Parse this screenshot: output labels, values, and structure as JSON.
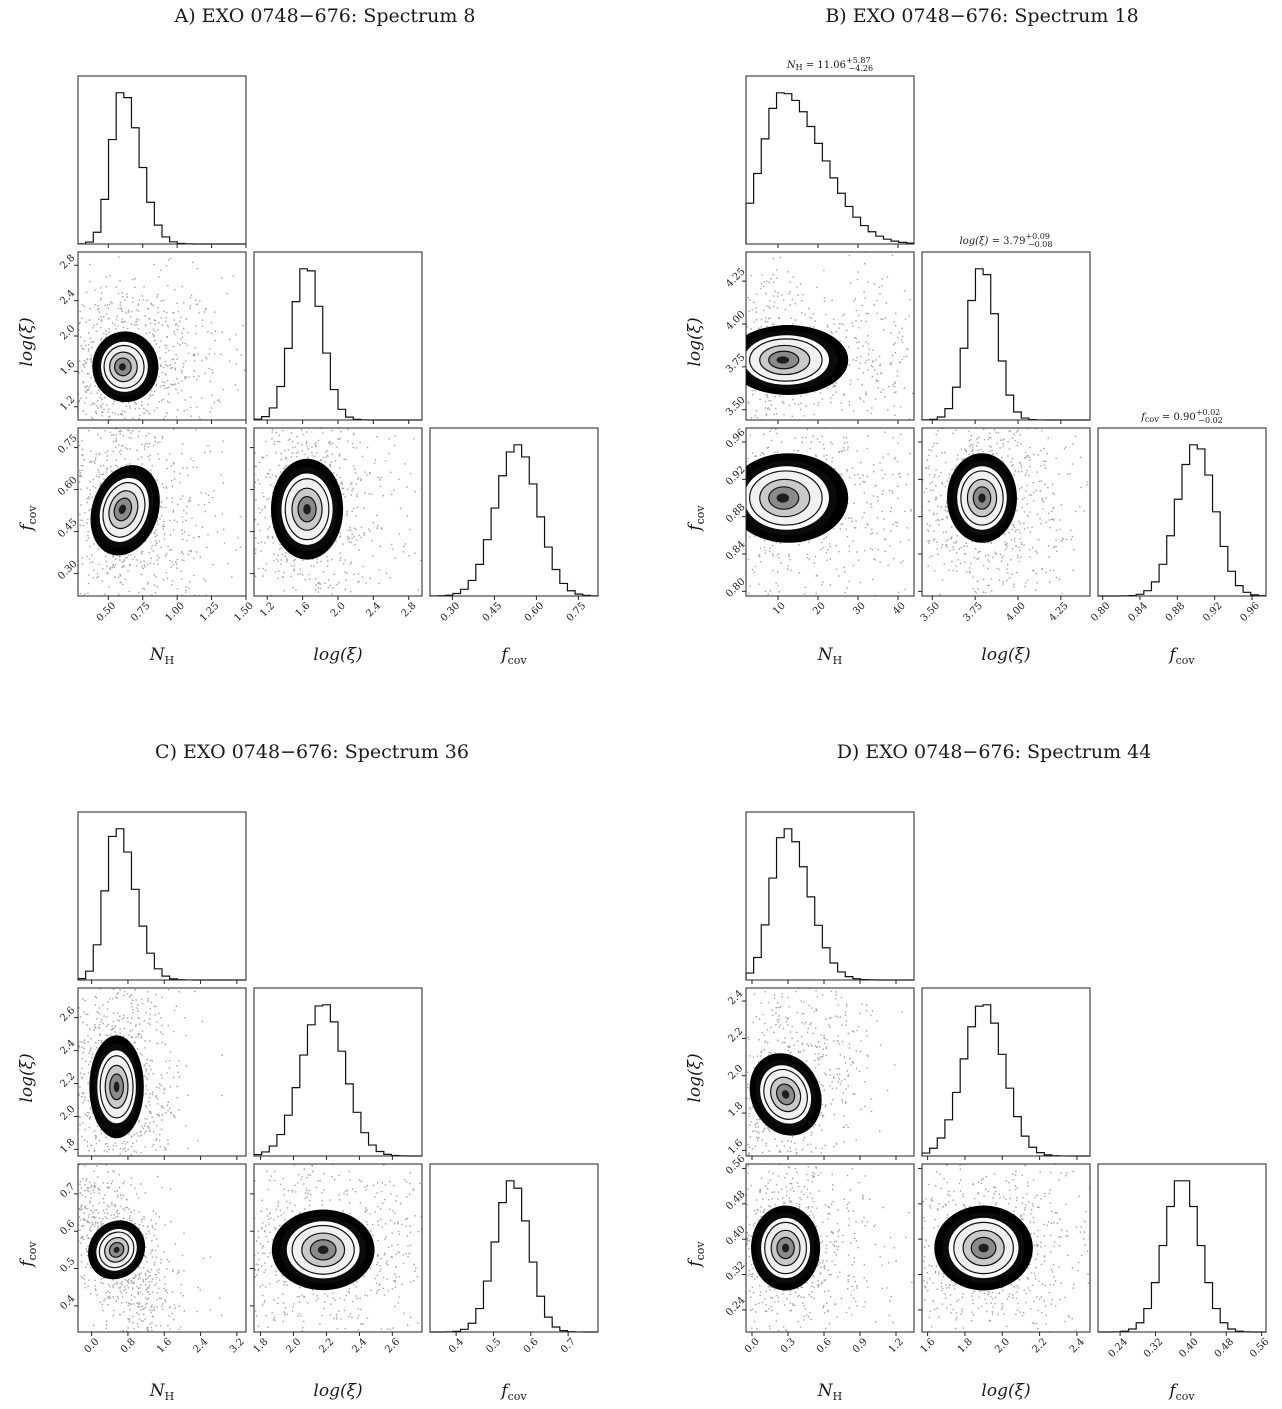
{
  "figure": {
    "panels": [
      {
        "id": "A",
        "title": "A) EXO 0748−676: Spectrum 8"
      },
      {
        "id": "B",
        "title": "B) EXO 0748−676: Spectrum 18"
      },
      {
        "id": "C",
        "title": "C) EXO 0748−676: Spectrum 36"
      },
      {
        "id": "D",
        "title": "D) EXO 0748−676: Spectrum 44"
      }
    ]
  },
  "chart_data": [
    {
      "type": "corner",
      "panel": "A",
      "title": "A) EXO 0748−676: Spectrum 8",
      "parameters": [
        "N_H",
        "log(ξ)",
        "f_cov"
      ],
      "axis_labels": [
        "N",
        "log(ξ)",
        "f"
      ],
      "axis_label_subs": [
        "H",
        "",
        "cov"
      ],
      "ranges": [
        [
          0.28,
          1.5
        ],
        [
          1.05,
          2.95
        ],
        [
          0.22,
          0.82
        ]
      ],
      "ticks": [
        [
          "0.50",
          "0.75",
          "1.00",
          "1.25",
          "1.50"
        ],
        [
          "1.2",
          "1.6",
          "2.0",
          "2.4",
          "2.8"
        ],
        [
          "0.30",
          "0.45",
          "0.60",
          "0.75"
        ]
      ],
      "stats": [
        "",
        "",
        ""
      ],
      "posterior": {
        "means": [
          0.6,
          1.65,
          0.53
        ],
        "sigmas": [
          0.08,
          0.17,
          0.075
        ],
        "correlations": {
          "0-1": 0.05,
          "0-2": -0.2,
          "1-2": 0.0
        }
      }
    },
    {
      "type": "corner",
      "panel": "B",
      "title": "B) EXO 0748−676: Spectrum 18",
      "parameters": [
        "N_H",
        "log(ξ)",
        "f_cov"
      ],
      "axis_labels": [
        "N",
        "log(ξ)",
        "f"
      ],
      "axis_label_subs": [
        "H",
        "",
        "cov"
      ],
      "ranges": [
        [
          2.0,
          44.0
        ],
        [
          3.44,
          4.42
        ],
        [
          0.795,
          0.975
        ]
      ],
      "ticks": [
        [
          "10",
          "20",
          "30",
          "40"
        ],
        [
          "3.50",
          "3.75",
          "4.00",
          "4.25"
        ],
        [
          "0.80",
          "0.84",
          "0.88",
          "0.92",
          "0.96"
        ]
      ],
      "stats": [
        "N_H = 11.06 +5.87 −4.26",
        "log(ξ) = 3.79 +0.09 −0.08",
        "f_cov = 0.90 +0.02 −0.02"
      ],
      "stat_parts": [
        {
          "lhs": "N",
          "sub": "H",
          "eq": " = 11.06",
          "sup": "+5.87",
          "low": "−4.26"
        },
        {
          "lhs": "log(ξ)",
          "sub": "",
          "eq": " = 3.79",
          "sup": "+0.09",
          "low": "−0.08"
        },
        {
          "lhs": "f",
          "sub": "cov",
          "eq": " = 0.90",
          "sup": "+0.02",
          "low": "−0.02"
        }
      ],
      "posterior": {
        "means": [
          11.06,
          3.79,
          0.9
        ],
        "sigmas": [
          5.0,
          0.085,
          0.02
        ],
        "correlations": {
          "0-1": 0.0,
          "0-2": 0.0,
          "1-2": 0.0
        }
      }
    },
    {
      "type": "corner",
      "panel": "C",
      "title": "C) EXO 0748−676: Spectrum 36",
      "parameters": [
        "N_H",
        "log(ξ)",
        "f_cov"
      ],
      "axis_labels": [
        "N",
        "log(ξ)",
        "f"
      ],
      "axis_label_subs": [
        "H",
        "",
        "cov"
      ],
      "ranges": [
        [
          -0.3,
          3.4
        ],
        [
          1.76,
          2.78
        ],
        [
          0.33,
          0.78
        ]
      ],
      "ticks": [
        [
          "0.0",
          "0.8",
          "1.6",
          "2.4",
          "3.2"
        ],
        [
          "1.8",
          "2.0",
          "2.2",
          "2.4",
          "2.6"
        ],
        [
          "0.4",
          "0.5",
          "0.6",
          "0.7"
        ]
      ],
      "stats": [
        "",
        "",
        ""
      ],
      "posterior": {
        "means": [
          0.55,
          2.18,
          0.55
        ],
        "sigmas": [
          0.25,
          0.13,
          0.045
        ],
        "correlations": {
          "0-1": 0.0,
          "0-2": -0.6,
          "1-2": 0.0
        }
      }
    },
    {
      "type": "corner",
      "panel": "D",
      "title": "D) EXO 0748−676: Spectrum 44",
      "parameters": [
        "N_H",
        "log(ξ)",
        "f_cov"
      ],
      "axis_labels": [
        "N",
        "log(ξ)",
        "f"
      ],
      "axis_label_subs": [
        "H",
        "",
        "cov"
      ],
      "ranges": [
        [
          -0.05,
          1.35
        ],
        [
          1.57,
          2.47
        ],
        [
          0.19,
          0.57
        ]
      ],
      "ticks": [
        [
          "0.0",
          "0.3",
          "0.6",
          "0.9",
          "1.2"
        ],
        [
          "1.6",
          "1.8",
          "2.0",
          "2.2",
          "2.4"
        ],
        [
          "0.24",
          "0.32",
          "0.40",
          "0.48",
          "0.56"
        ]
      ],
      "stats": [
        "",
        "",
        ""
      ],
      "posterior": {
        "means": [
          0.28,
          1.9,
          0.38
        ],
        "sigmas": [
          0.12,
          0.11,
          0.04
        ],
        "correlations": {
          "0-1": 0.35,
          "0-2": 0.0,
          "1-2": 0.0
        }
      }
    }
  ]
}
